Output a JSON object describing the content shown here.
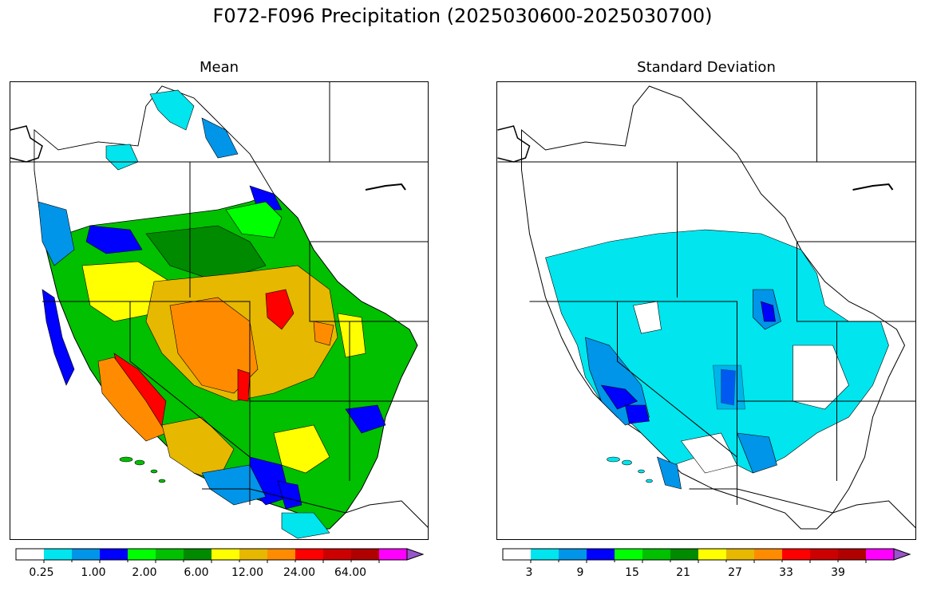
{
  "figure": {
    "title": "F072-F096 Precipitation (2025030600-2025030700)"
  },
  "panels": [
    {
      "title": "Mean",
      "colorbar": {
        "colors": [
          "#ffffff",
          "#00e5ee",
          "#0095e8",
          "#0000ff",
          "#00ff00",
          "#00c000",
          "#008a00",
          "#ffff00",
          "#e6b800",
          "#ff8c00",
          "#ff0000",
          "#cc0000",
          "#b00000",
          "#ff00ff",
          "#9955cc"
        ],
        "tick_labels": [
          "0.25",
          "1.00",
          "2.00",
          "6.00",
          "12.00",
          "24.00",
          "64.00"
        ],
        "extend": "max"
      }
    },
    {
      "title": "Standard Deviation",
      "colorbar": {
        "colors": [
          "#ffffff",
          "#00e5ee",
          "#0095e8",
          "#0000ff",
          "#00ff00",
          "#00c000",
          "#008a00",
          "#ffff00",
          "#e6b800",
          "#ff8c00",
          "#ff0000",
          "#cc0000",
          "#b00000",
          "#ff00ff",
          "#9955cc"
        ],
        "tick_labels": [
          "3",
          "9",
          "15",
          "21",
          "27",
          "33",
          "39"
        ],
        "extend": "max"
      }
    }
  ]
}
